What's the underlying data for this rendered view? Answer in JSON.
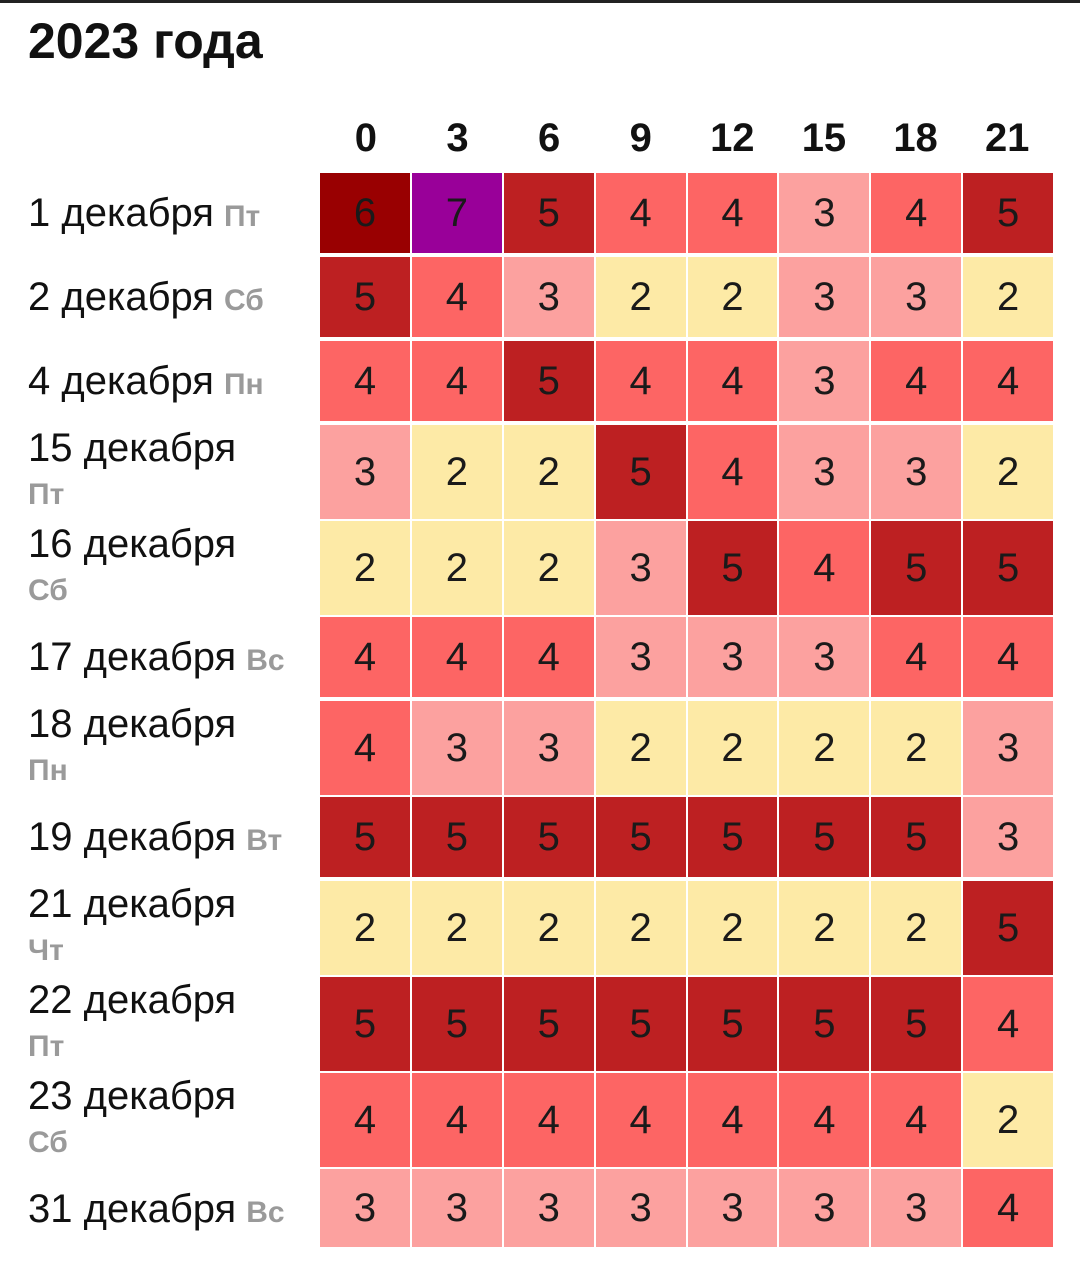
{
  "title": "2023 года",
  "hours": [
    "0",
    "3",
    "6",
    "9",
    "12",
    "15",
    "18",
    "21"
  ],
  "level_colors": {
    "2": "#fdeaa6",
    "3": "#fca19f",
    "4": "#fd6564",
    "5": "#bd2022",
    "6": "#990001",
    "7": "#990099"
  },
  "rows": [
    {
      "date": "1 декабря",
      "weekday": "Пт",
      "layout": "single",
      "values": [
        "6",
        "7",
        "5",
        "4",
        "4",
        "3",
        "4",
        "5"
      ]
    },
    {
      "date": "2 декабря",
      "weekday": "Сб",
      "layout": "single",
      "values": [
        "5",
        "4",
        "3",
        "2",
        "2",
        "3",
        "3",
        "2"
      ]
    },
    {
      "date": "4 декабря",
      "weekday": "Пн",
      "layout": "single",
      "values": [
        "4",
        "4",
        "5",
        "4",
        "4",
        "3",
        "4",
        "4"
      ]
    },
    {
      "date": "15 декабря",
      "weekday": "Пт",
      "layout": "double",
      "values": [
        "3",
        "2",
        "2",
        "5",
        "4",
        "3",
        "3",
        "2"
      ]
    },
    {
      "date": "16 декабря",
      "weekday": "Сб",
      "layout": "double",
      "values": [
        "2",
        "2",
        "2",
        "3",
        "5",
        "4",
        "5",
        "5"
      ]
    },
    {
      "date": "17 декабря",
      "weekday": "Вс",
      "layout": "single",
      "values": [
        "4",
        "4",
        "4",
        "3",
        "3",
        "3",
        "4",
        "4"
      ]
    },
    {
      "date": "18 декабря",
      "weekday": "Пн",
      "layout": "double",
      "values": [
        "4",
        "3",
        "3",
        "2",
        "2",
        "2",
        "2",
        "3"
      ]
    },
    {
      "date": "19 декабря",
      "weekday": "Вт",
      "layout": "single",
      "values": [
        "5",
        "5",
        "5",
        "5",
        "5",
        "5",
        "5",
        "3"
      ]
    },
    {
      "date": "21 декабря",
      "weekday": "Чт",
      "layout": "double",
      "values": [
        "2",
        "2",
        "2",
        "2",
        "2",
        "2",
        "2",
        "5"
      ]
    },
    {
      "date": "22 декабря",
      "weekday": "Пт",
      "layout": "double",
      "values": [
        "5",
        "5",
        "5",
        "5",
        "5",
        "5",
        "5",
        "4"
      ]
    },
    {
      "date": "23 декабря",
      "weekday": "Сб",
      "layout": "double",
      "values": [
        "4",
        "4",
        "4",
        "4",
        "4",
        "4",
        "4",
        "2"
      ]
    },
    {
      "date": "31 декабря",
      "weekday": "Вс",
      "layout": "single",
      "values": [
        "3",
        "3",
        "3",
        "3",
        "3",
        "3",
        "3",
        "4"
      ]
    }
  ]
}
